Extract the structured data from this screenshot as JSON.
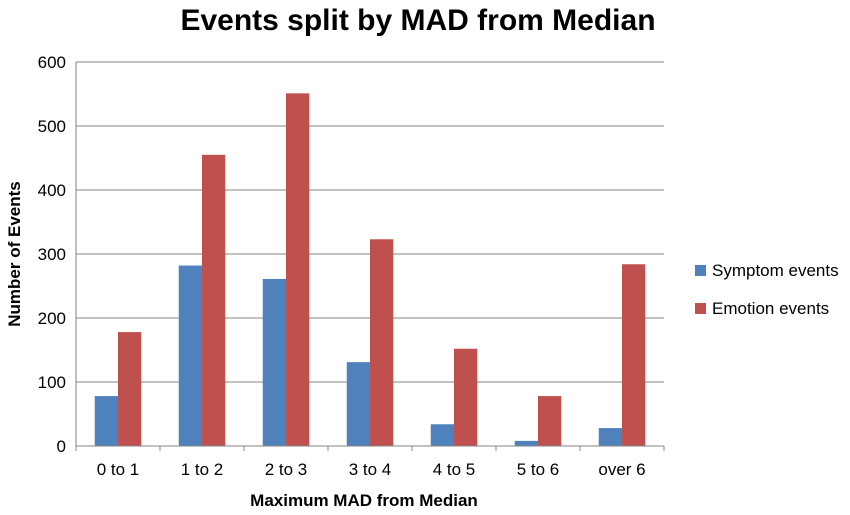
{
  "chart_data": {
    "type": "bar",
    "title": "Events split by MAD from Median",
    "xlabel": "Maximum MAD from Median",
    "ylabel": "Number of Events",
    "categories": [
      "0 to 1",
      "1 to 2",
      "2 to 3",
      "3 to 4",
      "4 to 5",
      "5 to 6",
      "over 6"
    ],
    "series": [
      {
        "name": "Symptom events",
        "color": "#4F81BD",
        "values": [
          78,
          282,
          261,
          131,
          34,
          8,
          28
        ]
      },
      {
        "name": "Emotion events",
        "color": "#C0504D",
        "values": [
          178,
          455,
          551,
          323,
          152,
          78,
          284
        ]
      }
    ],
    "ylim": [
      0,
      600
    ],
    "yticks": [
      0,
      100,
      200,
      300,
      400,
      500,
      600
    ],
    "grid": true,
    "legend_position": "right"
  }
}
